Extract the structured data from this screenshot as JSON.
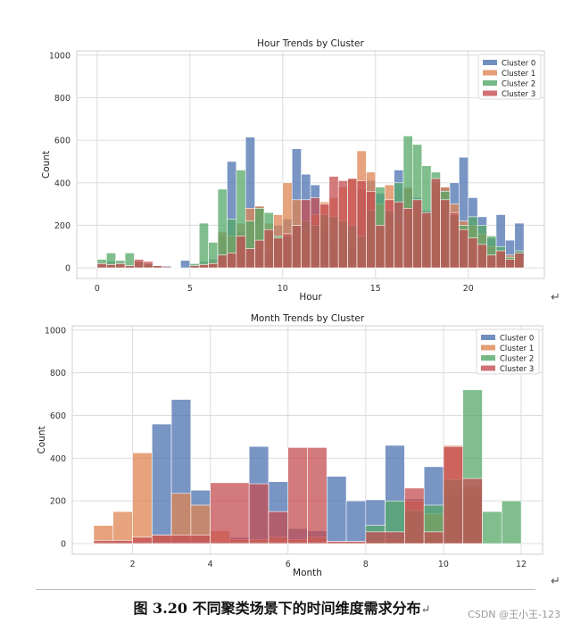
{
  "chart_data": [
    {
      "type": "bar",
      "title": "Hour Trends by Cluster",
      "xlabel": "Hour",
      "ylabel": "Count",
      "xlim": [
        -1.1,
        24.1
      ],
      "ylim": [
        -50,
        1020
      ],
      "xticks": [
        0,
        5,
        10,
        15,
        20
      ],
      "yticks": [
        0,
        200,
        400,
        600,
        800,
        1000
      ],
      "bin_width": 0.5,
      "legend_position": "top-right",
      "series": [
        {
          "name": "Cluster 0",
          "color": "#4c72b0",
          "bins": [
            [
              0,
              15
            ],
            [
              0.5,
              30
            ],
            [
              1,
              22
            ],
            [
              1.5,
              10
            ],
            [
              2,
              20
            ],
            [
              2.5,
              12
            ],
            [
              3,
              8
            ],
            [
              3.5,
              10
            ],
            [
              4,
              2
            ],
            [
              4.5,
              35
            ],
            [
              5,
              15
            ],
            [
              5.5,
              30
            ],
            [
              6,
              40
            ],
            [
              6.5,
              150
            ],
            [
              7,
              500
            ],
            [
              7.5,
              170
            ],
            [
              8,
              615
            ],
            [
              8.5,
              290
            ],
            [
              9,
              70
            ],
            [
              9.5,
              200
            ],
            [
              10,
              230
            ],
            [
              10.5,
              560
            ],
            [
              11,
              440
            ],
            [
              11.5,
              390
            ],
            [
              12,
              200
            ],
            [
              12.5,
              130
            ],
            [
              13,
              150
            ],
            [
              13.5,
              100
            ],
            [
              14,
              370
            ],
            [
              14.5,
              410
            ],
            [
              15,
              350
            ],
            [
              15.5,
              250
            ],
            [
              16,
              460
            ],
            [
              16.5,
              370
            ],
            [
              17,
              330
            ],
            [
              17.5,
              270
            ],
            [
              18,
              350
            ],
            [
              18.5,
              380
            ],
            [
              19,
              400
            ],
            [
              19.5,
              520
            ],
            [
              20,
              330
            ],
            [
              20.5,
              240
            ],
            [
              21,
              140
            ],
            [
              21.5,
              250
            ],
            [
              22,
              130
            ],
            [
              22.5,
              210
            ]
          ]
        },
        {
          "name": "Cluster 1",
          "color": "#dd8452",
          "bins": [
            [
              0,
              10
            ],
            [
              0.5,
              20
            ],
            [
              1,
              15
            ],
            [
              1.5,
              10
            ],
            [
              2,
              30
            ],
            [
              2.5,
              15
            ],
            [
              3,
              5
            ],
            [
              3.5,
              5
            ],
            [
              5,
              10
            ],
            [
              5.5,
              20
            ],
            [
              6,
              30
            ],
            [
              6.5,
              170
            ],
            [
              7,
              150
            ],
            [
              7.5,
              210
            ],
            [
              8,
              280
            ],
            [
              8.5,
              290
            ],
            [
              9,
              210
            ],
            [
              9.5,
              250
            ],
            [
              10,
              400
            ],
            [
              10.5,
              320
            ],
            [
              11,
              180
            ],
            [
              11.5,
              250
            ],
            [
              12,
              310
            ],
            [
              12.5,
              330
            ],
            [
              13,
              380
            ],
            [
              13.5,
              420
            ],
            [
              14,
              550
            ],
            [
              14.5,
              450
            ],
            [
              15,
              300
            ],
            [
              15.5,
              390
            ],
            [
              16,
              220
            ],
            [
              16.5,
              380
            ],
            [
              17,
              320
            ],
            [
              17.5,
              250
            ],
            [
              18,
              400
            ],
            [
              18.5,
              380
            ],
            [
              19,
              300
            ],
            [
              19.5,
              220
            ],
            [
              20,
              200
            ],
            [
              20.5,
              160
            ],
            [
              21,
              100
            ],
            [
              21.5,
              80
            ],
            [
              22,
              60
            ],
            [
              22.5,
              50
            ]
          ]
        },
        {
          "name": "Cluster 2",
          "color": "#55a868",
          "bins": [
            [
              0,
              40
            ],
            [
              0.5,
              70
            ],
            [
              1,
              35
            ],
            [
              1.5,
              70
            ],
            [
              2,
              30
            ],
            [
              2.5,
              20
            ],
            [
              3,
              10
            ],
            [
              3.5,
              5
            ],
            [
              5,
              20
            ],
            [
              5.5,
              210
            ],
            [
              6,
              120
            ],
            [
              6.5,
              370
            ],
            [
              7,
              230
            ],
            [
              7.5,
              460
            ],
            [
              8,
              220
            ],
            [
              8.5,
              280
            ],
            [
              9,
              260
            ],
            [
              9.5,
              150
            ],
            [
              10,
              150
            ],
            [
              10.5,
              200
            ],
            [
              11,
              220
            ],
            [
              11.5,
              200
            ],
            [
              12,
              250
            ],
            [
              12.5,
              240
            ],
            [
              13,
              220
            ],
            [
              13.5,
              200
            ],
            [
              14,
              150
            ],
            [
              14.5,
              270
            ],
            [
              15,
              380
            ],
            [
              15.5,
              270
            ],
            [
              16,
              400
            ],
            [
              16.5,
              620
            ],
            [
              17,
              580
            ],
            [
              17.5,
              480
            ],
            [
              18,
              450
            ],
            [
              18.5,
              360
            ],
            [
              19,
              250
            ],
            [
              19.5,
              200
            ],
            [
              20,
              240
            ],
            [
              20.5,
              200
            ],
            [
              21,
              150
            ],
            [
              21.5,
              100
            ],
            [
              22,
              50
            ],
            [
              22.5,
              80
            ]
          ]
        },
        {
          "name": "Cluster 3",
          "color": "#c44e52",
          "bins": [
            [
              0,
              20
            ],
            [
              0.5,
              15
            ],
            [
              1,
              20
            ],
            [
              1.5,
              10
            ],
            [
              2,
              40
            ],
            [
              2.5,
              30
            ],
            [
              3,
              10
            ],
            [
              3.5,
              5
            ],
            [
              5,
              10
            ],
            [
              5.5,
              15
            ],
            [
              6,
              20
            ],
            [
              6.5,
              60
            ],
            [
              7,
              70
            ],
            [
              7.5,
              150
            ],
            [
              8,
              90
            ],
            [
              8.5,
              130
            ],
            [
              9,
              180
            ],
            [
              9.5,
              140
            ],
            [
              10,
              160
            ],
            [
              10.5,
              200
            ],
            [
              11,
              320
            ],
            [
              11.5,
              330
            ],
            [
              12,
              300
            ],
            [
              12.5,
              430
            ],
            [
              13,
              410
            ],
            [
              13.5,
              420
            ],
            [
              14,
              410
            ],
            [
              14.5,
              360
            ],
            [
              15,
              200
            ],
            [
              15.5,
              320
            ],
            [
              16,
              310
            ],
            [
              16.5,
              280
            ],
            [
              17,
              320
            ],
            [
              17.5,
              260
            ],
            [
              18,
              420
            ],
            [
              18.5,
              320
            ],
            [
              19,
              260
            ],
            [
              19.5,
              180
            ],
            [
              20,
              140
            ],
            [
              20.5,
              110
            ],
            [
              21,
              60
            ],
            [
              21.5,
              80
            ],
            [
              22,
              40
            ],
            [
              22.5,
              70
            ]
          ]
        }
      ]
    },
    {
      "type": "bar",
      "title": "Month Trends by Cluster",
      "xlabel": "Month",
      "ylabel": "Count",
      "xlim": [
        0.45,
        12.55
      ],
      "ylim": [
        -50,
        1020
      ],
      "xticks": [
        2,
        4,
        6,
        8,
        10,
        12
      ],
      "yticks": [
        0,
        200,
        400,
        600,
        800,
        1000
      ],
      "legend_position": "top-right",
      "series": [
        {
          "name": "Cluster 0",
          "color": "#4c72b0",
          "bins": [
            [
              1,
              1.5,
              5
            ],
            [
              1.5,
              2,
              10
            ],
            [
              2,
              2.5,
              10
            ],
            [
              2.5,
              3,
              560
            ],
            [
              3,
              3.5,
              675
            ],
            [
              3.5,
              4,
              250
            ],
            [
              4,
              4.5,
              10
            ],
            [
              4.5,
              5,
              30
            ],
            [
              5,
              5.5,
              455
            ],
            [
              5.5,
              6,
              290
            ],
            [
              6,
              6.5,
              70
            ],
            [
              6.5,
              7,
              60
            ],
            [
              7,
              7.5,
              315
            ],
            [
              7.5,
              8,
              200
            ],
            [
              8,
              8.5,
              205
            ],
            [
              8.5,
              9,
              460
            ],
            [
              9,
              9.5,
              210
            ],
            [
              9.5,
              10,
              360
            ],
            [
              10,
              10.5,
              230
            ],
            [
              10.5,
              11,
              225
            ]
          ]
        },
        {
          "name": "Cluster 1",
          "color": "#dd8452",
          "bins": [
            [
              1,
              1.5,
              85
            ],
            [
              1.5,
              2,
              150
            ],
            [
              2,
              2.5,
              425
            ],
            [
              2.5,
              3,
              40
            ],
            [
              3,
              3.5,
              235
            ],
            [
              3.5,
              4,
              180
            ],
            [
              4,
              4.5,
              60
            ],
            [
              4.5,
              5,
              20
            ],
            [
              5,
              5.5,
              20
            ],
            [
              5.5,
              6,
              30
            ],
            [
              6,
              6.5,
              20
            ],
            [
              6.5,
              7,
              30
            ],
            [
              7,
              7.5,
              10
            ],
            [
              7.5,
              8,
              10
            ],
            [
              8,
              8.5,
              10
            ],
            [
              8.5,
              9,
              20
            ],
            [
              9,
              9.5,
              200
            ],
            [
              9.5,
              10,
              140
            ],
            [
              10,
              10.5,
              460
            ],
            [
              10.5,
              11,
              270
            ]
          ]
        },
        {
          "name": "Cluster 2",
          "color": "#55a868",
          "bins": [
            [
              1,
              2,
              5
            ],
            [
              2,
              3,
              5
            ],
            [
              3,
              4,
              5
            ],
            [
              4,
              5,
              5
            ],
            [
              5,
              6,
              5
            ],
            [
              6,
              7,
              5
            ],
            [
              7,
              8,
              5
            ],
            [
              8,
              8.5,
              85
            ],
            [
              8.5,
              9,
              200
            ],
            [
              9,
              9.5,
              155
            ],
            [
              9.5,
              10,
              180
            ],
            [
              10,
              10.5,
              300
            ],
            [
              10.5,
              11,
              720
            ],
            [
              11,
              11.5,
              150
            ],
            [
              11.5,
              12,
              200
            ]
          ]
        },
        {
          "name": "Cluster 3",
          "color": "#c44e52",
          "bins": [
            [
              1,
              2,
              15
            ],
            [
              2,
              2.5,
              30
            ],
            [
              2.5,
              4,
              40
            ],
            [
              4,
              5,
              285
            ],
            [
              5,
              5.5,
              280
            ],
            [
              5.5,
              6,
              150
            ],
            [
              6,
              6.5,
              450
            ],
            [
              6.5,
              7,
              450
            ],
            [
              7,
              8,
              10
            ],
            [
              8,
              9,
              55
            ],
            [
              9,
              9.5,
              260
            ],
            [
              9.5,
              10,
              55
            ],
            [
              10,
              10.5,
              455
            ],
            [
              10.5,
              11,
              305
            ]
          ]
        }
      ]
    }
  ],
  "caption": "图 3.20  不同聚类场景下的时间维度需求分布",
  "watermark": "CSDN @王小王-123",
  "para_mark": "↵"
}
